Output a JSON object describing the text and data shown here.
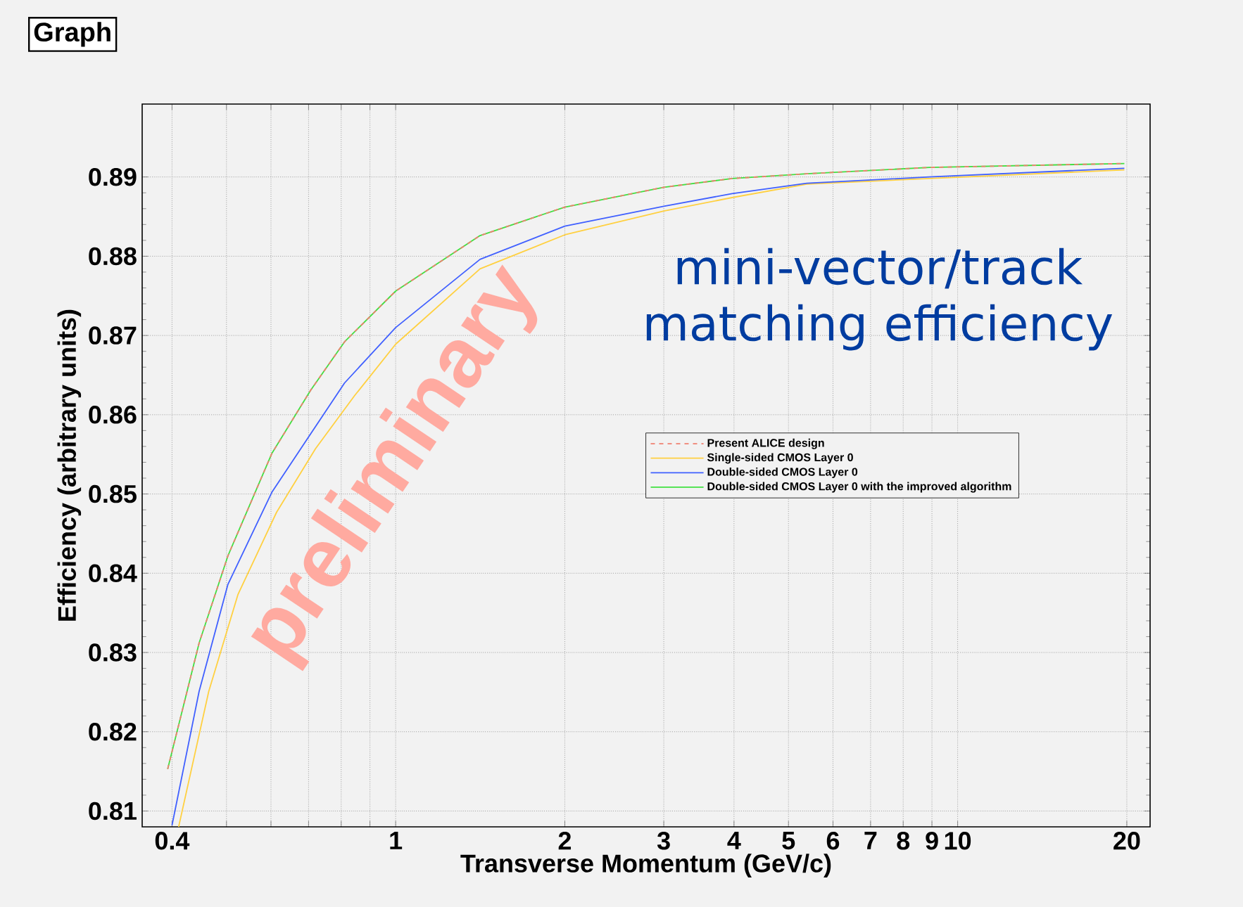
{
  "chart_data": {
    "type": "line",
    "title": "Graph",
    "xlabel": "Transverse Momentum (GeV/c)",
    "ylabel": "Efficiency (arbitrary units)",
    "log": "x",
    "xlim": [
      0.354,
      22
    ],
    "ylim": [
      0.808,
      0.8992
    ],
    "xticks": [
      0.4,
      {
        "value": 0.5,
        "label": null
      },
      {
        "value": 0.6,
        "label": null
      },
      {
        "value": 0.7,
        "label": null
      },
      {
        "value": 0.8,
        "label": null
      },
      {
        "value": 0.9,
        "label": null
      },
      1,
      2,
      3,
      4,
      5,
      6,
      7,
      8,
      9,
      10,
      20
    ],
    "yticks": [
      0.81,
      0.82,
      0.83,
      0.84,
      0.85,
      0.86,
      0.87,
      0.88,
      0.89
    ],
    "grid": true,
    "legend": "right",
    "marker": "none",
    "annotations": [
      "mini-vector/track matching efficiency",
      "preliminary"
    ],
    "series": [
      {
        "name": "Present ALICE design",
        "color": "#f08070",
        "line_style": "dashed",
        "x": [
          0.393,
          0.447,
          0.503,
          0.602,
          0.706,
          0.811,
          1,
          1.413,
          2.0,
          3.0,
          3.97,
          5.39,
          8.9,
          19.8
        ],
        "values": [
          0.8153,
          0.8312,
          0.8422,
          0.8551,
          0.8631,
          0.8692,
          0.8756,
          0.8826,
          0.8862,
          0.8887,
          0.8898,
          0.8904,
          0.8912,
          0.8917
        ]
      },
      {
        "name": "Single-sided CMOS Layer 0",
        "color": "#ffd040",
        "x": [
          0.411,
          0.465,
          0.524,
          0.614,
          0.72,
          0.845,
          1,
          1.413,
          2.0,
          3.0,
          3.97,
          5.39,
          8.9,
          19.8
        ],
        "values": [
          0.808,
          0.8251,
          0.8373,
          0.8477,
          0.8557,
          0.8624,
          0.8689,
          0.8784,
          0.8827,
          0.8857,
          0.8874,
          0.8891,
          0.8898,
          0.8909
        ]
      },
      {
        "name": "Double-sided CMOS Layer 0",
        "color": "#4060ff",
        "x": [
          0.4,
          0.447,
          0.503,
          0.602,
          0.706,
          0.811,
          1,
          1.413,
          2.0,
          3.0,
          3.97,
          5.39,
          8.9,
          19.8
        ],
        "values": [
          0.8082,
          0.8251,
          0.8386,
          0.8502,
          0.8576,
          0.864,
          0.871,
          0.8796,
          0.8838,
          0.8863,
          0.8879,
          0.8892,
          0.89,
          0.8911
        ]
      },
      {
        "name": "Double-sided CMOS Layer 0 with the improved algorithm",
        "color": "#40e040",
        "x": [
          0.393,
          0.447,
          0.503,
          0.602,
          0.706,
          0.811,
          1,
          1.413,
          2.0,
          3.0,
          3.97,
          5.39,
          8.9,
          19.8
        ],
        "values": [
          0.8153,
          0.8312,
          0.8422,
          0.8551,
          0.8631,
          0.8692,
          0.8756,
          0.8826,
          0.8862,
          0.8887,
          0.8898,
          0.8904,
          0.8912,
          0.8917
        ]
      }
    ]
  }
}
